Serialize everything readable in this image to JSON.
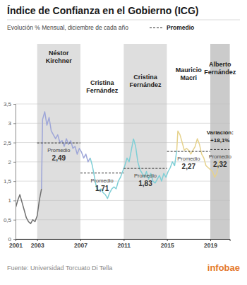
{
  "chart_data": {
    "type": "line",
    "title": "Índice de Confianza en el Gobierno (ICG)",
    "subtitle": "Evolución % Mensual, diciembre de cada año",
    "legend_label": "Promedio",
    "source": "Fuente: Universidad Torcuato Di Tella",
    "logo": "infobae",
    "xlim": [
      2001,
      2020.8
    ],
    "xticks": [
      2001,
      2003,
      2007,
      2011,
      2015,
      2019
    ],
    "ylim": [
      0,
      3.5
    ],
    "yticks": [
      0,
      {
        "value": 0.5,
        "label": "0,5"
      },
      1,
      {
        "value": 1.5,
        "label": "1,5"
      },
      2,
      {
        "value": 2.5,
        "label": "2,5"
      },
      3,
      {
        "value": 3.5,
        "label": "3,5"
      }
    ],
    "grid": true,
    "series": [
      {
        "color": "#6f6f6f",
        "x": [
          2001.0,
          2001.2,
          2001.4,
          2001.6,
          2001.8,
          2002.0,
          2002.2,
          2002.4,
          2002.6,
          2002.8,
          2003.0,
          2003.2,
          2003.4
        ],
        "values": [
          0.8,
          1.0,
          1.15,
          0.95,
          0.75,
          0.55,
          0.45,
          0.4,
          0.5,
          0.45,
          0.6,
          1.0,
          1.3
        ]
      },
      {
        "color": "#9ea6d8",
        "x": [
          2003.4,
          2003.5,
          2003.7,
          2003.9,
          2004.1,
          2004.3,
          2004.5,
          2004.7,
          2004.9,
          2005.1,
          2005.3,
          2005.5,
          2005.7,
          2005.9,
          2006.1,
          2006.3,
          2006.5,
          2006.7,
          2006.9,
          2007.1,
          2007.3,
          2007.5,
          2007.7,
          2007.9
        ],
        "values": [
          1.3,
          3.1,
          3.3,
          2.95,
          3.15,
          2.8,
          2.7,
          2.6,
          2.7,
          2.5,
          2.55,
          2.4,
          2.6,
          2.45,
          2.55,
          2.35,
          2.4,
          2.2,
          2.35,
          2.25,
          2.1,
          2.2,
          2.0,
          2.1
        ]
      },
      {
        "color": "#7fcfd6",
        "x": [
          2007.9,
          2008.1,
          2008.3,
          2008.5,
          2008.7,
          2008.9,
          2009.1,
          2009.3,
          2009.5,
          2009.7,
          2009.9,
          2010.1,
          2010.3,
          2010.5,
          2010.7,
          2010.9,
          2011.1,
          2011.3,
          2011.5,
          2011.7,
          2011.9
        ],
        "values": [
          2.1,
          1.9,
          1.6,
          1.3,
          1.25,
          1.3,
          1.2,
          1.15,
          1.05,
          1.2,
          1.3,
          1.35,
          1.3,
          1.5,
          1.6,
          1.75,
          1.9,
          2.1,
          2.0,
          2.3,
          2.6
        ]
      },
      {
        "color": "#7fcfd6",
        "x": [
          2011.9,
          2012.1,
          2012.3,
          2012.5,
          2012.7,
          2012.9,
          2013.1,
          2013.3,
          2013.5,
          2013.7,
          2013.9,
          2014.1,
          2014.3,
          2014.5,
          2014.7,
          2014.9,
          2015.1,
          2015.3,
          2015.5,
          2015.7,
          2015.9
        ],
        "values": [
          2.6,
          2.4,
          2.0,
          1.8,
          1.7,
          1.6,
          1.75,
          1.55,
          1.7,
          1.5,
          1.45,
          1.55,
          1.65,
          1.5,
          1.7,
          1.6,
          1.75,
          1.85,
          2.0,
          1.9,
          2.3
        ]
      },
      {
        "color": "#e6d28c",
        "x": [
          2015.9,
          2016.0,
          2016.2,
          2016.4,
          2016.6,
          2016.8,
          2017.0,
          2017.2,
          2017.4,
          2017.6,
          2017.8,
          2018.0,
          2018.2,
          2018.4,
          2018.6,
          2018.8,
          2019.0,
          2019.2,
          2019.4,
          2019.6,
          2019.8,
          2019.9
        ],
        "values": [
          2.3,
          2.8,
          2.7,
          2.5,
          2.3,
          2.35,
          2.3,
          2.2,
          2.3,
          2.4,
          2.6,
          2.45,
          2.2,
          2.1,
          1.9,
          1.85,
          1.8,
          1.75,
          1.6,
          1.7,
          2.0,
          2.05
        ]
      }
    ],
    "periods": [
      {
        "name": "Néstor Kirchner",
        "start": 2003,
        "end": 2007,
        "color": "#dedede",
        "average": 2.49,
        "average_label": "2,49"
      },
      {
        "name": "Cristina Fernández",
        "start": 2007,
        "end": 2011,
        "color": "#ffffff",
        "average": 1.71,
        "average_label": "1,71"
      },
      {
        "name": "Cristina Fernández",
        "start": 2011,
        "end": 2015,
        "color": "#dedede",
        "average": 1.83,
        "average_label": "1,83"
      },
      {
        "name": "Mauricio Macri",
        "start": 2015,
        "end": 2019,
        "color": "#ffffff",
        "average": 2.27,
        "average_label": "2,27"
      },
      {
        "name": "Alberto Fernández",
        "start": 2019,
        "end": 2020.8,
        "color": "#cbcbcb",
        "average": 2.32,
        "average_label": "2,32",
        "variation": 18.1,
        "variation_title": "Variación:",
        "variation_label": "+18,1%"
      }
    ]
  }
}
